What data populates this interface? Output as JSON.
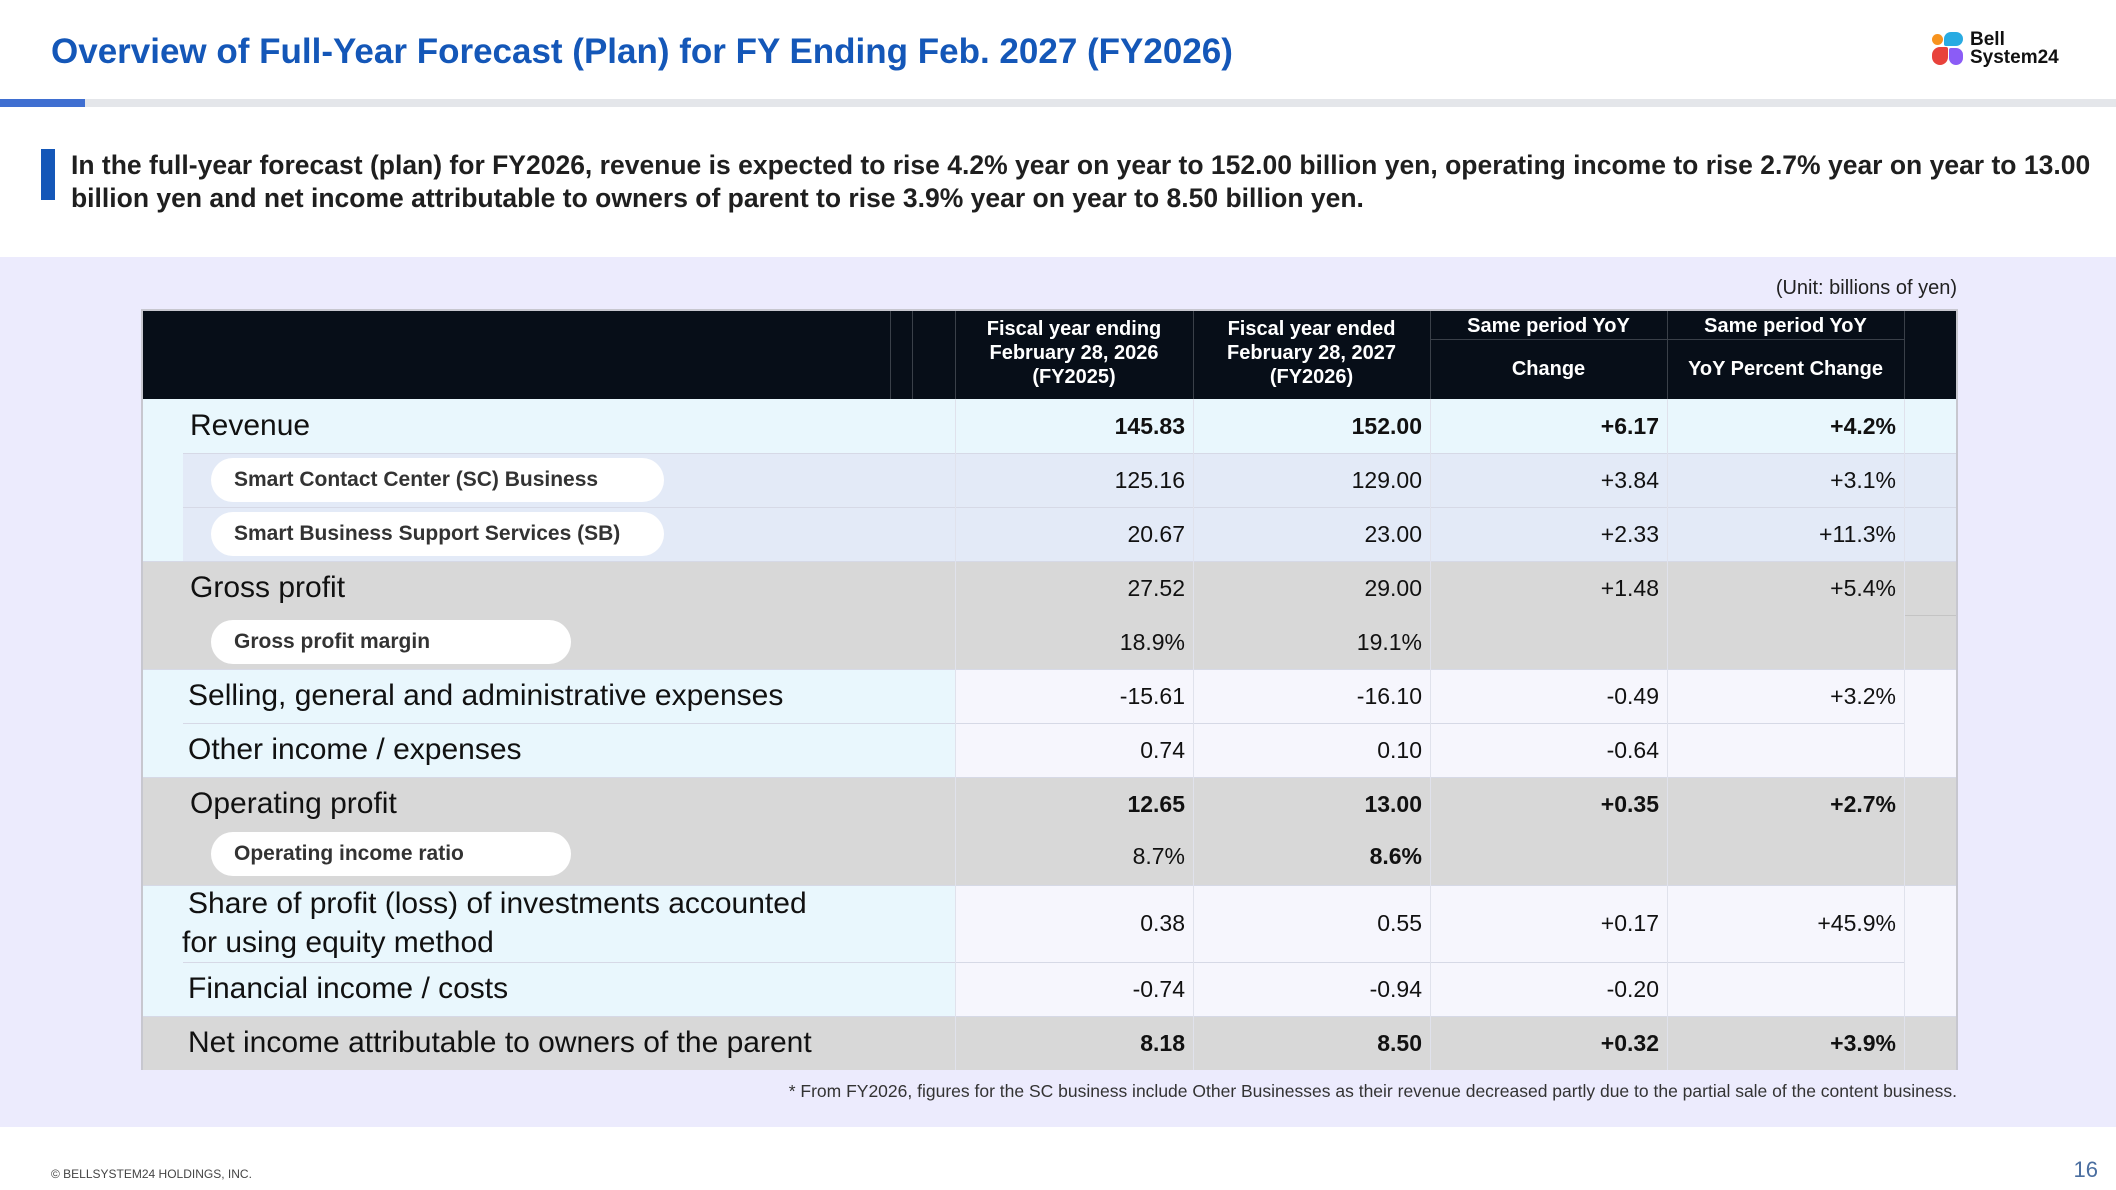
{
  "title": "Overview of Full-Year Forecast (Plan) for FY Ending Feb. 2027 (FY2026)",
  "logo": {
    "line1": "Bell",
    "line2": "System24"
  },
  "lead": "In the full-year forecast (plan) for FY2026, revenue is expected to rise 4.2% year on year to 152.00 billion yen, operating income to rise 2.7% year on year to 13.00 billion yen and net income attributable to owners of parent to rise 3.9% year on year to 8.50 billion yen.",
  "unit": "(Unit: billions of yen)",
  "table": {
    "columns": {
      "fy2025": [
        "Fiscal year ending",
        "February 28, 2026",
        "(FY2025)"
      ],
      "fy2026": [
        "Fiscal year ended",
        "February 28, 2027",
        "(FY2026)"
      ],
      "change_top": "Same period YoY",
      "change_bottom": "Change",
      "pct_top": "Same period YoY",
      "pct_bottom": "YoY Percent Change"
    },
    "rows": [
      {
        "label": "Revenue",
        "fy2025": "145.83",
        "fy2026": "152.00",
        "change": "+6.17",
        "pct": "+4.2%"
      },
      {
        "label": "Smart Contact Center (SC) Business",
        "fy2025": "125.16",
        "fy2026": "129.00",
        "change": "+3.84",
        "pct": "+3.1%"
      },
      {
        "label": "Smart Business Support Services (SB)",
        "fy2025": "20.67",
        "fy2026": "23.00",
        "change": "+2.33",
        "pct": "+11.3%"
      },
      {
        "label": "Gross profit",
        "fy2025": "27.52",
        "fy2026": "29.00",
        "change": "+1.48",
        "pct": "+5.4%"
      },
      {
        "label": "Gross profit margin",
        "fy2025": "18.9%",
        "fy2026": "19.1%",
        "change": "",
        "pct": ""
      },
      {
        "label": "Selling, general and administrative expenses",
        "fy2025": "-15.61",
        "fy2026": "-16.10",
        "change": "-0.49",
        "pct": "+3.2%"
      },
      {
        "label": "Other income / expenses",
        "fy2025": "0.74",
        "fy2026": "0.10",
        "change": "-0.64",
        "pct": ""
      },
      {
        "label": "Operating profit",
        "fy2025": "12.65",
        "fy2026": "13.00",
        "change": "+0.35",
        "pct": "+2.7%"
      },
      {
        "label": "Operating income ratio",
        "fy2025": "8.7%",
        "fy2026": "8.6%",
        "change": "",
        "pct": ""
      },
      {
        "label1": "Share of profit (loss) of investments accounted",
        "label2": "for using equity method",
        "fy2025": "0.38",
        "fy2026": "0.55",
        "change": "+0.17",
        "pct": "+45.9%"
      },
      {
        "label": "Financial income / costs",
        "fy2025": "-0.74",
        "fy2026": "-0.94",
        "change": "-0.20",
        "pct": ""
      },
      {
        "label": "Net income attributable to owners of the parent",
        "fy2025": "8.18",
        "fy2026": "8.50",
        "change": "+0.32",
        "pct": "+3.9%"
      }
    ]
  },
  "footnote": "* From FY2026, figures for the SC business include Other Businesses as their revenue decreased partly due to the partial sale of the content business.",
  "copyright": "© BELLSYSTEM24 HOLDINGS, INC.",
  "page_number": "16",
  "colors": {
    "title": "#1457b8",
    "header_bg": "#070e18",
    "panel_bg": "#ecebfd",
    "grey_band": "#d8d8d8",
    "blue_band": "#e9f7fd"
  }
}
